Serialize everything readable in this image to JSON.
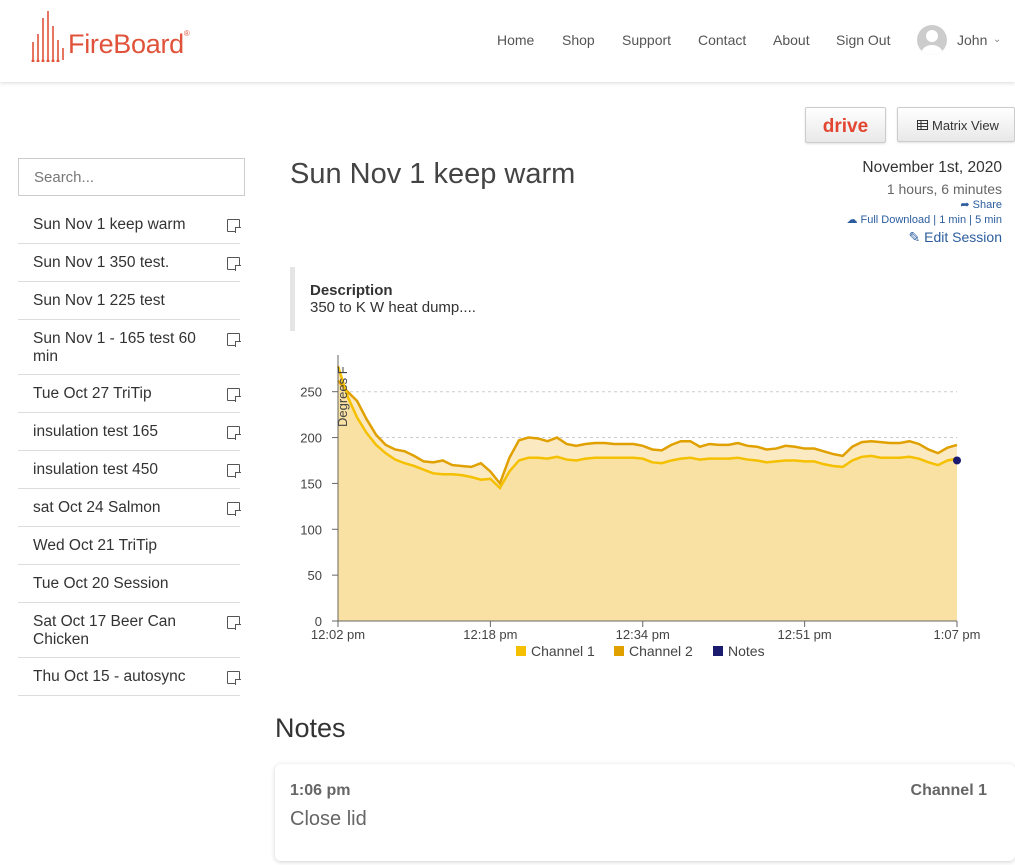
{
  "brand": {
    "name": "FireBoard",
    "mark": "®",
    "color": "#e0533a"
  },
  "nav": [
    "Home",
    "Shop",
    "Support",
    "Contact",
    "About",
    "Sign Out"
  ],
  "user": {
    "name": "John"
  },
  "toolbar": {
    "drive_label": "drive",
    "matrix_label": "Matrix View"
  },
  "search": {
    "placeholder": "Search..."
  },
  "sessions": [
    {
      "name": "Sun Nov 1 keep warm",
      "has_note": true
    },
    {
      "name": "Sun Nov 1 350 test.",
      "has_note": true
    },
    {
      "name": "Sun Nov 1 225 test",
      "has_note": false
    },
    {
      "name": "Sun Nov 1 - 165 test 60 min",
      "has_note": true
    },
    {
      "name": "Tue Oct 27 TriTip",
      "has_note": true
    },
    {
      "name": "insulation test 165",
      "has_note": true
    },
    {
      "name": "insulation test 450",
      "has_note": true
    },
    {
      "name": "sat Oct 24 Salmon",
      "has_note": true
    },
    {
      "name": "Wed Oct 21 TriTip",
      "has_note": false
    },
    {
      "name": "Tue Oct 20 Session",
      "has_note": false
    },
    {
      "name": "Sat Oct 17 Beer Can Chicken",
      "has_note": true
    },
    {
      "name": "Thu Oct 15 - autosync",
      "has_note": true
    }
  ],
  "session": {
    "title": "Sun Nov 1 keep warm",
    "date": "November 1st, 2020",
    "duration": "1 hours, 6 minutes",
    "share_label": "Share",
    "full_download_label": "Full Download",
    "one_min_label": "1 min",
    "five_min_label": "5 min",
    "edit_label": "Edit Session",
    "description_heading": "Description",
    "description_text": "350 to K W heat dump...."
  },
  "chart_data": {
    "type": "area",
    "ylabel": "Degrees F",
    "ylim": [
      0,
      290
    ],
    "yticks": [
      0,
      50,
      100,
      150,
      200,
      250
    ],
    "xlim_minutes": [
      0,
      66
    ],
    "xticks": [
      {
        "label": "12:02 pm",
        "minute": 0
      },
      {
        "label": "12:18 pm",
        "minute": 16
      },
      {
        "label": "12:34 pm",
        "minute": 32
      },
      {
        "label": "12:51 pm",
        "minute": 49
      },
      {
        "label": "1:07 pm",
        "minute": 65
      }
    ],
    "grid": true,
    "legend_position": "bottom",
    "series": [
      {
        "name": "Channel 1",
        "color": "#f5c000",
        "x": [
          0,
          1,
          2,
          3,
          4,
          5,
          6,
          7,
          8,
          9,
          10,
          11,
          12,
          13,
          14,
          15,
          16,
          17,
          18,
          19,
          20,
          21,
          22,
          23,
          24,
          25,
          26,
          27,
          28,
          29,
          30,
          31,
          32,
          33,
          34,
          35,
          36,
          37,
          38,
          39,
          40,
          41,
          42,
          43,
          44,
          45,
          46,
          47,
          48,
          49,
          50,
          51,
          52,
          53,
          54,
          55,
          56,
          57,
          58,
          59,
          60,
          61,
          62,
          63,
          64,
          65
        ],
        "y": [
          278,
          245,
          222,
          205,
          192,
          183,
          176,
          172,
          169,
          165,
          161,
          160,
          160,
          159,
          157,
          154,
          155,
          145,
          163,
          175,
          178,
          178,
          177,
          179,
          176,
          175,
          177,
          178,
          178,
          178,
          178,
          178,
          177,
          173,
          172,
          175,
          177,
          178,
          176,
          177,
          177,
          177,
          178,
          176,
          175,
          173,
          174,
          175,
          175,
          174,
          174,
          171,
          169,
          168,
          175,
          179,
          180,
          178,
          178,
          178,
          179,
          177,
          173,
          170,
          175,
          177
        ]
      },
      {
        "name": "Channel 2",
        "color": "#e0a000",
        "x": [
          0,
          1,
          2,
          3,
          4,
          5,
          6,
          7,
          8,
          9,
          10,
          11,
          12,
          13,
          14,
          15,
          16,
          17,
          18,
          19,
          20,
          21,
          22,
          23,
          24,
          25,
          26,
          27,
          28,
          29,
          30,
          31,
          32,
          33,
          34,
          35,
          36,
          37,
          38,
          39,
          40,
          41,
          42,
          43,
          44,
          45,
          46,
          47,
          48,
          49,
          50,
          51,
          52,
          53,
          54,
          55,
          56,
          57,
          58,
          59,
          60,
          61,
          62,
          63,
          64,
          65
        ],
        "y": [
          262,
          250,
          240,
          220,
          203,
          192,
          187,
          185,
          180,
          174,
          173,
          175,
          170,
          169,
          168,
          172,
          163,
          150,
          178,
          197,
          200,
          199,
          196,
          200,
          193,
          191,
          193,
          194,
          194,
          193,
          193,
          193,
          191,
          187,
          186,
          192,
          196,
          196,
          190,
          193,
          192,
          192,
          194,
          191,
          190,
          187,
          188,
          191,
          190,
          188,
          188,
          185,
          182,
          180,
          190,
          195,
          196,
          195,
          194,
          194,
          196,
          193,
          187,
          183,
          189,
          192
        ]
      },
      {
        "name": "Notes",
        "color": "#1a1a6e",
        "x": [
          65
        ],
        "y": [
          175
        ]
      }
    ]
  },
  "notes_section": {
    "title": "Notes",
    "items": [
      {
        "time": "1:06 pm",
        "channel": "Channel 1",
        "text": "Close lid"
      }
    ]
  }
}
